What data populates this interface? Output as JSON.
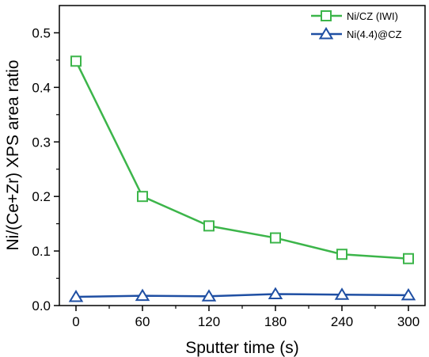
{
  "chart_data": {
    "type": "line",
    "title": "",
    "xlabel": "Sputter time (s)",
    "ylabel": "Ni/(Ce+Zr) XPS area ratio",
    "x": [
      0,
      60,
      120,
      180,
      240,
      300
    ],
    "xlim": [
      -15,
      315
    ],
    "ylim": [
      0,
      0.55
    ],
    "xticks": [
      "0",
      "60",
      "120",
      "180",
      "240",
      "300"
    ],
    "yticks": [
      "0.0",
      "0.1",
      "0.2",
      "0.3",
      "0.4",
      "0.5"
    ],
    "grid": false,
    "legend_position": "top-right",
    "series": [
      {
        "name": "Ni/CZ (IWI)",
        "values": [
          0.448,
          0.2,
          0.146,
          0.124,
          0.094,
          0.086
        ],
        "color": "#3cb54a",
        "marker": "square"
      },
      {
        "name": "Ni(4.4)@CZ",
        "values": [
          0.016,
          0.018,
          0.017,
          0.021,
          0.02,
          0.019
        ],
        "color": "#1f4fa3",
        "marker": "triangle"
      }
    ]
  }
}
